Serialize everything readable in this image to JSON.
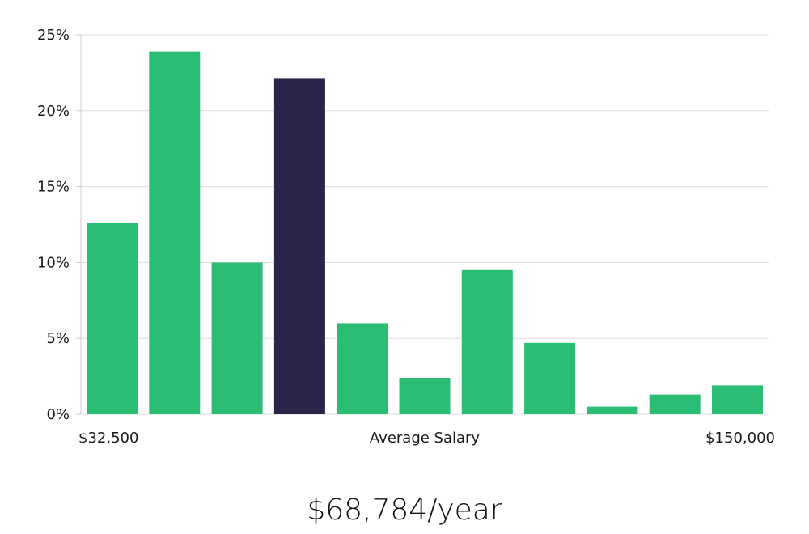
{
  "chart_data": {
    "type": "bar",
    "title": "",
    "xlabel": "Average Salary",
    "ylabel": "",
    "x_range_labels": {
      "min": "$32,500",
      "max": "$150,000"
    },
    "ylim": [
      0,
      25
    ],
    "y_ticks": [
      0,
      5,
      10,
      15,
      20,
      25
    ],
    "y_tick_format": "%",
    "grid": true,
    "values": [
      12.6,
      23.9,
      10.0,
      22.1,
      6.0,
      2.4,
      9.5,
      4.7,
      0.5,
      1.3,
      1.9
    ],
    "highlight_index": 3,
    "colors": {
      "bar": "#2bbd74",
      "highlight": "#29254a",
      "grid": "#dddddd",
      "axis": "#cccccc"
    }
  },
  "summary": {
    "average_salary_text": "$68,784/year"
  }
}
